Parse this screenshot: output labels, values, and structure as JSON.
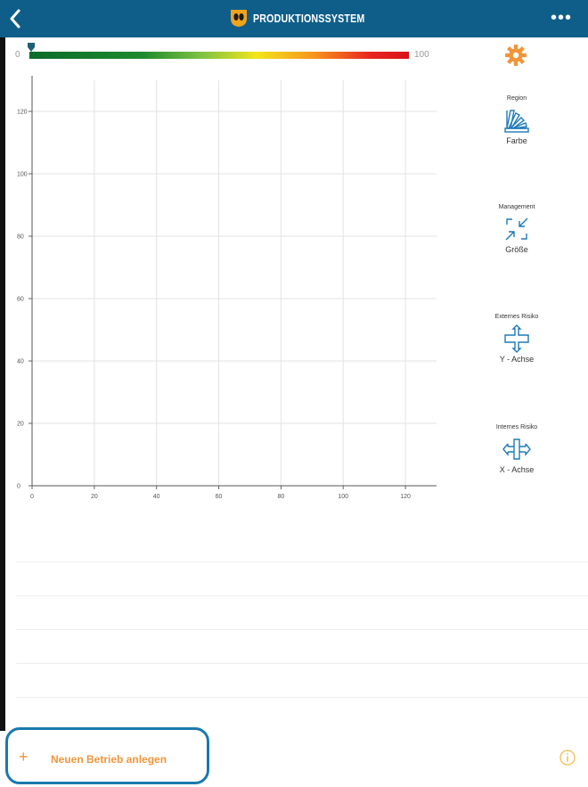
{
  "header": {
    "title": "PRODUKTIONSSYSTEM",
    "back_icon": "chevron-left-icon",
    "more_label": "•••",
    "logo_icon": "logo-icon"
  },
  "scale": {
    "min": "0",
    "max": "100"
  },
  "chart_data": {
    "type": "scatter",
    "title": "",
    "xlabel": "",
    "ylabel": "",
    "xlim": [
      0,
      130
    ],
    "ylim": [
      0,
      130
    ],
    "x_ticks": [
      "0",
      "20",
      "40",
      "60",
      "80",
      "100",
      "120"
    ],
    "y_ticks": [
      "0",
      "20",
      "40",
      "60",
      "80",
      "100",
      "120"
    ],
    "grid": true,
    "series": []
  },
  "tools": [
    {
      "top": "Region",
      "bottom": "Farbe",
      "icon": "color-fan-icon"
    },
    {
      "top": "Management",
      "bottom": "Größe",
      "icon": "resize-icon"
    },
    {
      "top": "Externes Risiko",
      "bottom": "Y - Achse",
      "icon": "vertical-axis-icon"
    },
    {
      "top": "Internes Risiko",
      "bottom": "X - Achse",
      "icon": "horizontal-axis-icon"
    }
  ],
  "footer": {
    "add_plus": "+",
    "add_label": "Neuen Betrieb anlegen",
    "info_icon": "info-icon"
  },
  "colors": {
    "header_bg": "#0f5e8a",
    "accent_orange": "#f0953a",
    "highlight_blue": "#1a79ad",
    "icon_blue": "#1f7ab8"
  }
}
